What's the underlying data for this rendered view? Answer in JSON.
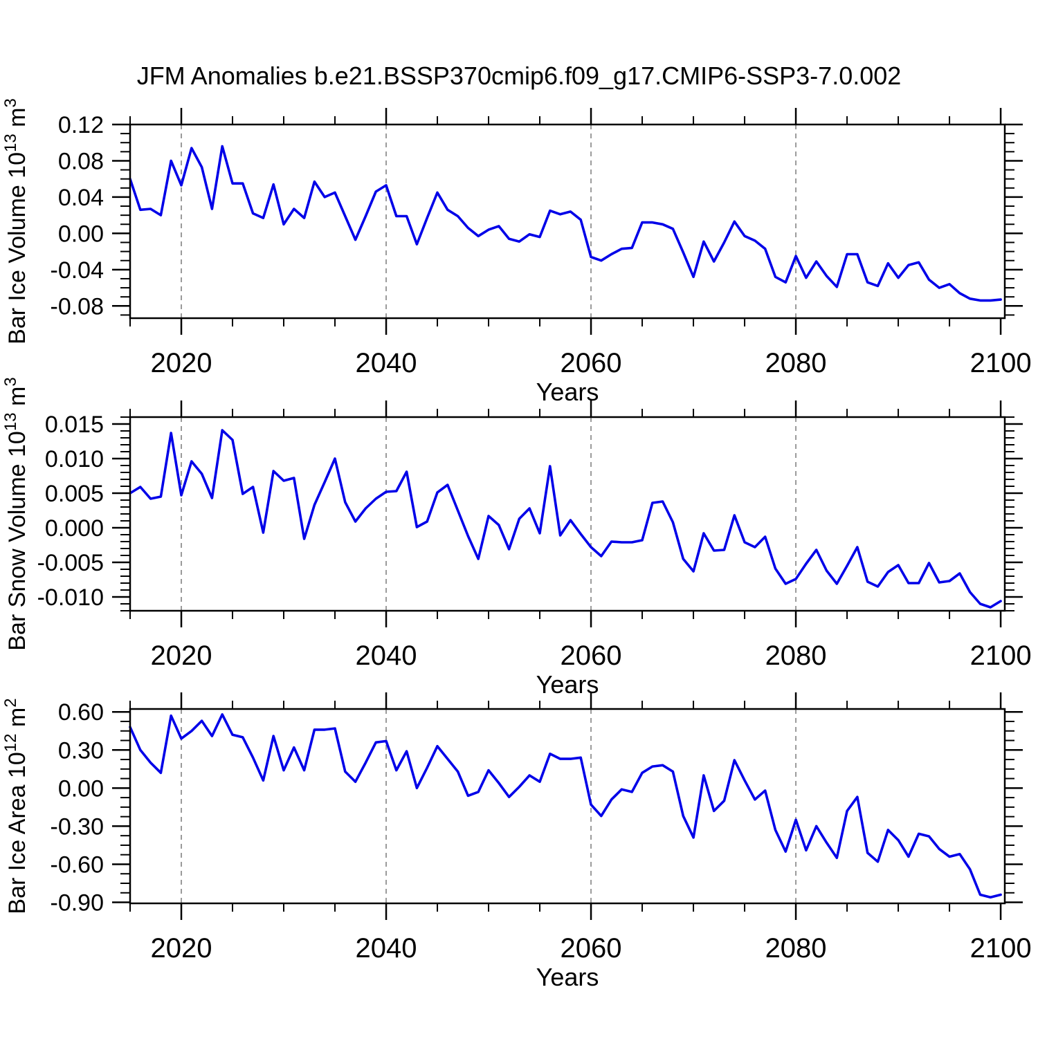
{
  "title": "JFM Anomalies b.e21.BSSP370cmip6.f09_g17.CMIP6-SSP3-7.0.002",
  "colors": {
    "line": "#0000e8",
    "grid": "#9a9a9a",
    "axis": "#000000"
  },
  "years": [
    2015,
    2016,
    2017,
    2018,
    2019,
    2020,
    2021,
    2022,
    2023,
    2024,
    2025,
    2026,
    2027,
    2028,
    2029,
    2030,
    2031,
    2032,
    2033,
    2034,
    2035,
    2036,
    2037,
    2038,
    2039,
    2040,
    2041,
    2042,
    2043,
    2044,
    2045,
    2046,
    2047,
    2048,
    2049,
    2050,
    2051,
    2052,
    2053,
    2054,
    2055,
    2056,
    2057,
    2058,
    2059,
    2060,
    2061,
    2062,
    2063,
    2064,
    2065,
    2066,
    2067,
    2068,
    2069,
    2070,
    2071,
    2072,
    2073,
    2074,
    2075,
    2076,
    2077,
    2078,
    2079,
    2080,
    2081,
    2082,
    2083,
    2084,
    2085,
    2086,
    2087,
    2088,
    2089,
    2090,
    2091,
    2092,
    2093,
    2094,
    2095,
    2096,
    2097,
    2098,
    2099,
    2100
  ],
  "chart_data": [
    {
      "type": "line",
      "ylabel": "Bar Ice Volume 10^13 m^3",
      "ylabel_parts": [
        {
          "t": "Bar Ice Volume 10"
        },
        {
          "t": "13",
          "sup": true
        },
        {
          "t": " m"
        },
        {
          "t": "3",
          "sup": true
        }
      ],
      "xlabel": "Years",
      "xlim": [
        2015,
        2100.4
      ],
      "ylim": [
        -0.0935,
        0.12
      ],
      "x_ticks": {
        "major": [
          2020,
          2040,
          2060,
          2080,
          2100
        ],
        "labels": [
          "2020",
          "2040",
          "2060",
          "2080",
          "2100"
        ],
        "minor_step": 5
      },
      "y_ticks": {
        "major": [
          0.12,
          0.08,
          0.04,
          0.0,
          -0.04,
          -0.08
        ],
        "labels": [
          "0.12",
          "0.08",
          "0.04",
          "0.00",
          "-0.04",
          "-0.08"
        ],
        "minor_step": 0.01
      },
      "grid_x": [
        2020,
        2040,
        2060,
        2080
      ],
      "grid_on": true,
      "legend": null,
      "values": [
        0.06,
        0.026,
        0.027,
        0.02,
        0.08,
        0.053,
        0.094,
        0.073,
        0.027,
        0.096,
        0.055,
        0.055,
        0.022,
        0.017,
        0.054,
        0.01,
        0.027,
        0.017,
        0.057,
        0.04,
        0.045,
        0.019,
        -0.007,
        0.019,
        0.046,
        0.053,
        0.019,
        0.019,
        -0.012,
        0.017,
        0.045,
        0.026,
        0.019,
        0.006,
        -0.003,
        0.004,
        0.008,
        -0.006,
        -0.009,
        -0.001,
        -0.004,
        0.025,
        0.021,
        0.024,
        0.015,
        -0.026,
        -0.03,
        -0.023,
        -0.017,
        -0.016,
        0.012,
        0.012,
        0.01,
        0.005,
        -0.021,
        -0.048,
        -0.009,
        -0.031,
        -0.01,
        0.013,
        -0.003,
        -0.008,
        -0.017,
        -0.048,
        -0.054,
        -0.025,
        -0.049,
        -0.031,
        -0.047,
        -0.059,
        -0.023,
        -0.023,
        -0.054,
        -0.058,
        -0.033,
        -0.049,
        -0.035,
        -0.032,
        -0.051,
        -0.06,
        -0.056,
        -0.066,
        -0.072,
        -0.074,
        -0.074,
        -0.073
      ]
    },
    {
      "type": "line",
      "ylabel": "Bar Snow Volume 10^13 m^3",
      "ylabel_parts": [
        {
          "t": "Bar Snow Volume 10"
        },
        {
          "t": "13",
          "sup": true
        },
        {
          "t": " m"
        },
        {
          "t": "3",
          "sup": true
        }
      ],
      "xlabel": "Years",
      "xlim": [
        2015,
        2100.4
      ],
      "ylim": [
        -0.012,
        0.016
      ],
      "x_ticks": {
        "major": [
          2020,
          2040,
          2060,
          2080,
          2100
        ],
        "labels": [
          "2020",
          "2040",
          "2060",
          "2080",
          "2100"
        ],
        "minor_step": 5
      },
      "y_ticks": {
        "major": [
          0.015,
          0.01,
          0.005,
          0.0,
          -0.005,
          -0.01
        ],
        "labels": [
          "0.015",
          "0.010",
          "0.005",
          "0.000",
          "-0.005",
          "-0.010"
        ],
        "minor_step": 0.001
      },
      "grid_x": [
        2020,
        2040,
        2060,
        2080
      ],
      "grid_on": true,
      "legend": null,
      "values": [
        0.005,
        0.0059,
        0.0042,
        0.0045,
        0.0137,
        0.0047,
        0.0096,
        0.0078,
        0.0043,
        0.0141,
        0.0127,
        0.0049,
        0.0059,
        -0.0007,
        0.0082,
        0.0068,
        0.0072,
        -0.0016,
        0.0033,
        0.0066,
        0.01,
        0.0037,
        0.0009,
        0.0028,
        0.0042,
        0.0052,
        0.0053,
        0.0081,
        0.0001,
        0.0009,
        0.0051,
        0.0062,
        0.0025,
        -0.0012,
        -0.0045,
        0.0017,
        0.0004,
        -0.0031,
        0.0013,
        0.0028,
        -0.0008,
        0.0089,
        -0.0011,
        0.0011,
        -0.0009,
        -0.0028,
        -0.0041,
        -0.002,
        -0.0021,
        -0.0021,
        -0.0018,
        0.0036,
        0.0038,
        0.0008,
        -0.0045,
        -0.0063,
        -0.0008,
        -0.0033,
        -0.0032,
        0.0018,
        -0.0021,
        -0.0028,
        -0.0013,
        -0.0059,
        -0.0081,
        -0.0074,
        -0.0052,
        -0.0032,
        -0.0062,
        -0.0081,
        -0.0055,
        -0.0028,
        -0.0078,
        -0.0085,
        -0.0064,
        -0.0054,
        -0.008,
        -0.008,
        -0.0051,
        -0.0079,
        -0.0077,
        -0.0066,
        -0.0093,
        -0.011,
        -0.0115,
        -0.0106
      ]
    },
    {
      "type": "line",
      "ylabel": "Bar Ice Area 10^12 m^2",
      "ylabel_parts": [
        {
          "t": "Bar Ice Area 10"
        },
        {
          "t": "12",
          "sup": true
        },
        {
          "t": " m"
        },
        {
          "t": "2",
          "sup": true
        }
      ],
      "xlabel": "Years",
      "xlim": [
        2015,
        2100.4
      ],
      "ylim": [
        -0.908,
        0.623
      ],
      "x_ticks": {
        "major": [
          2020,
          2040,
          2060,
          2080,
          2100
        ],
        "labels": [
          "2020",
          "2040",
          "2060",
          "2080",
          "2100"
        ],
        "minor_step": 5
      },
      "y_ticks": {
        "major": [
          0.6,
          0.3,
          0.0,
          -0.3,
          -0.6,
          -0.9
        ],
        "labels": [
          "0.60",
          "0.30",
          "0.00",
          "-0.30",
          "-0.60",
          "-0.90"
        ],
        "minor_step": 0.075
      },
      "grid_x": [
        2020,
        2040,
        2060,
        2080
      ],
      "grid_on": true,
      "legend": null,
      "values": [
        0.48,
        0.3,
        0.2,
        0.12,
        0.57,
        0.39,
        0.45,
        0.53,
        0.41,
        0.58,
        0.42,
        0.4,
        0.24,
        0.06,
        0.41,
        0.14,
        0.32,
        0.14,
        0.46,
        0.46,
        0.47,
        0.13,
        0.05,
        0.2,
        0.36,
        0.37,
        0.14,
        0.29,
        0.0,
        0.16,
        0.33,
        0.23,
        0.13,
        -0.06,
        -0.03,
        0.14,
        0.04,
        -0.07,
        0.01,
        0.1,
        0.05,
        0.27,
        0.23,
        0.23,
        0.24,
        -0.13,
        -0.22,
        -0.09,
        -0.01,
        -0.03,
        0.12,
        0.17,
        0.18,
        0.13,
        -0.22,
        -0.39,
        0.1,
        -0.18,
        -0.1,
        0.22,
        0.06,
        -0.09,
        -0.02,
        -0.33,
        -0.5,
        -0.25,
        -0.49,
        -0.3,
        -0.43,
        -0.55,
        -0.18,
        -0.07,
        -0.51,
        -0.58,
        -0.33,
        -0.41,
        -0.54,
        -0.36,
        -0.38,
        -0.48,
        -0.54,
        -0.52,
        -0.64,
        -0.84,
        -0.86,
        -0.84
      ]
    }
  ]
}
